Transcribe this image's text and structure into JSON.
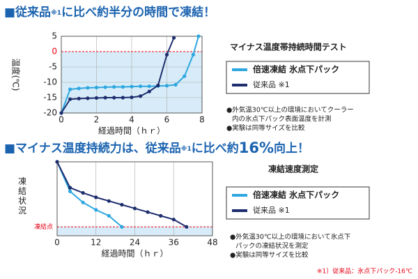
{
  "chart_data": [
    {
      "type": "line",
      "heading": [
        "■従来品",
        "※1",
        "に比べ約半分の時間で凍結！"
      ],
      "title": "マイナス温度帯持続時間テスト",
      "xlabel": "経過時間（ｈｒ）",
      "ylabel": "温度(℃)",
      "xlim": [
        0,
        8
      ],
      "xticks": [
        0,
        2,
        4,
        6,
        8
      ],
      "ylim": [
        -20,
        5
      ],
      "yticks": [
        -20,
        -15,
        -10,
        -5,
        5
      ],
      "reference_line": {
        "value": 0,
        "label": "0",
        "color": "#e60012"
      },
      "grid": true,
      "series": [
        {
          "name": "倍速凍結 氷点下パック",
          "color": "#2ea7e0",
          "x": [
            0,
            0.5,
            1,
            1.5,
            2,
            2.5,
            3,
            3.5,
            4,
            4.5,
            5,
            5.5,
            6,
            6.5,
            7,
            7.5,
            7.8
          ],
          "values": [
            -20,
            -12.3,
            -12,
            -11.8,
            -11.7,
            -11.6,
            -11.5,
            -11.5,
            -11.4,
            -11.3,
            -11.3,
            -11.2,
            -11.1,
            -10.8,
            -8,
            -1,
            5
          ]
        },
        {
          "name": "従来品 ※1",
          "color": "#1d2d6e",
          "x": [
            0,
            0.5,
            1,
            1.5,
            2,
            2.5,
            3,
            3.5,
            4,
            4.5,
            5,
            5.5,
            6,
            6.4
          ],
          "values": [
            -20,
            -15.5,
            -15.3,
            -15.2,
            -15.1,
            -15,
            -15,
            -15,
            -14.9,
            -14.5,
            -13,
            -11,
            -1,
            4.5
          ]
        }
      ],
      "notes": [
        "●外気温30℃以上の環境においてクーラー",
        "内の氷点下パック表面温度を計測",
        "●実験は同等サイズを比較"
      ]
    },
    {
      "type": "line",
      "heading": [
        "■マイナス温度持続力は、従来品",
        "※1",
        "に比べ約",
        "16%",
        "向上！"
      ],
      "title": "凍結速度測定",
      "xlabel": "経過時間（ｈｒ）",
      "ylabel": "凍結状況",
      "xlim": [
        0,
        48
      ],
      "xticks": [
        0,
        12,
        24,
        36,
        48
      ],
      "ylim": [
        0,
        100
      ],
      "yticks": [],
      "reference_line": {
        "value": 12,
        "label": "凍結点",
        "color": "#e60012"
      },
      "grid": true,
      "series": [
        {
          "name": "倍速凍結 氷点下パック",
          "color": "#2ea7e0",
          "x": [
            0,
            4,
            8,
            12,
            16,
            20
          ],
          "values": [
            100,
            60,
            45,
            35,
            27,
            12
          ]
        },
        {
          "name": "従来品 ※1",
          "color": "#1d2d6e",
          "x": [
            0,
            4,
            8,
            12,
            16,
            20,
            24,
            28,
            32,
            36,
            40
          ],
          "values": [
            100,
            65,
            58,
            52,
            47,
            42,
            37,
            32,
            27,
            22,
            12
          ]
        }
      ],
      "notes": [
        "●外気温30℃以上の環境において氷点下",
        "パックの凍結状況を測定",
        "●実験は同等サイズを比較"
      ]
    }
  ],
  "footnote": "※1）従来品：氷点下パック-16℃"
}
